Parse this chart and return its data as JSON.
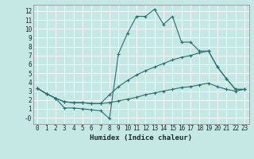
{
  "xlabel": "Humidex (Indice chaleur)",
  "xlim": [
    -0.5,
    23.5
  ],
  "ylim": [
    -0.7,
    12.7
  ],
  "xticks": [
    0,
    1,
    2,
    3,
    4,
    5,
    6,
    7,
    8,
    9,
    10,
    11,
    12,
    13,
    14,
    15,
    16,
    17,
    18,
    19,
    20,
    21,
    22,
    23
  ],
  "yticks": [
    0,
    1,
    2,
    3,
    4,
    5,
    6,
    7,
    8,
    9,
    10,
    11,
    12
  ],
  "ytick_labels": [
    "-0",
    "1",
    "2",
    "3",
    "4",
    "5",
    "6",
    "7",
    "8",
    "9",
    "10",
    "11",
    "12"
  ],
  "background_color": "#c5e8e5",
  "grid_color": "#ffffff",
  "line_color": "#286e6e",
  "lines": [
    {
      "x": [
        0,
        1,
        2,
        3,
        4,
        5,
        6,
        7,
        8,
        9,
        10,
        11,
        12,
        13,
        14,
        15,
        16,
        17,
        18,
        19,
        20,
        21,
        22,
        23
      ],
      "y": [
        3.3,
        2.7,
        2.2,
        1.1,
        1.1,
        1.0,
        0.9,
        0.8,
        -0.1,
        7.2,
        9.5,
        11.4,
        11.4,
        12.2,
        10.5,
        11.4,
        8.5,
        8.5,
        7.5,
        7.5,
        5.7,
        4.4,
        3.2,
        3.2
      ]
    },
    {
      "x": [
        0,
        1,
        2,
        3,
        4,
        5,
        6,
        7,
        8,
        9,
        10,
        11,
        12,
        13,
        14,
        15,
        16,
        17,
        18,
        19,
        20,
        21,
        22,
        23
      ],
      "y": [
        3.3,
        2.7,
        2.2,
        1.8,
        1.7,
        1.7,
        1.6,
        1.6,
        2.6,
        3.5,
        4.2,
        4.8,
        5.3,
        5.7,
        6.1,
        6.5,
        6.8,
        7.0,
        7.3,
        7.5,
        5.7,
        4.4,
        3.2,
        3.2
      ]
    },
    {
      "x": [
        0,
        1,
        2,
        3,
        4,
        5,
        6,
        7,
        8,
        9,
        10,
        11,
        12,
        13,
        14,
        15,
        16,
        17,
        18,
        19,
        20,
        21,
        22,
        23
      ],
      "y": [
        3.3,
        2.7,
        2.2,
        1.8,
        1.7,
        1.7,
        1.6,
        1.6,
        1.7,
        1.9,
        2.1,
        2.3,
        2.6,
        2.8,
        3.0,
        3.2,
        3.4,
        3.5,
        3.7,
        3.9,
        3.5,
        3.2,
        3.0,
        3.2
      ]
    }
  ]
}
